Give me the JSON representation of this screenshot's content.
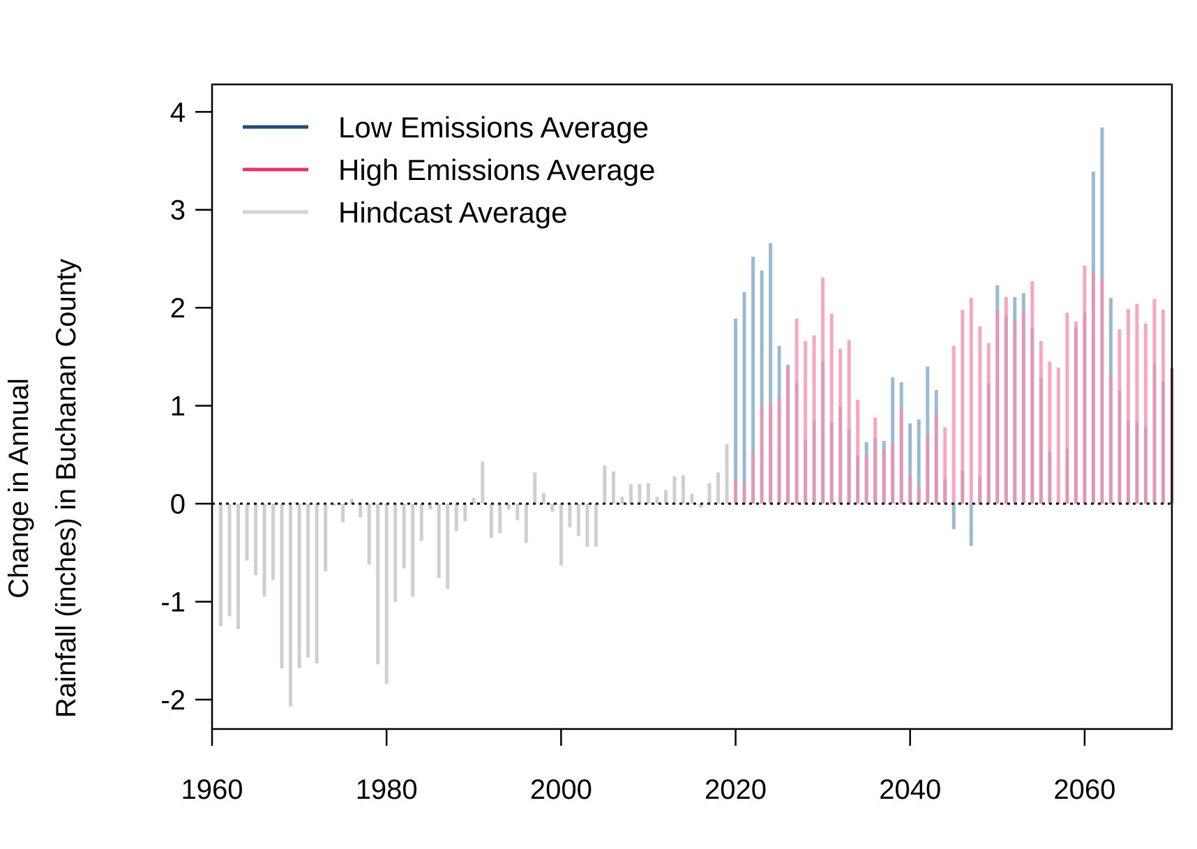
{
  "chart_data": {
    "type": "bar",
    "title": "",
    "xlabel": "",
    "ylabel_lines": [
      "Change in Annual",
      "Rainfall (inches) in Buchanan County"
    ],
    "xlim": [
      1960,
      2070
    ],
    "ylim": [
      -2.3,
      4.0
    ],
    "xticks": [
      1960,
      1980,
      2000,
      2020,
      2040,
      2060
    ],
    "yticks": [
      -2,
      -1,
      0,
      1,
      2,
      3,
      4
    ],
    "grid": false,
    "zero_line": "dotted",
    "legend": {
      "placement": "top-left",
      "entries": [
        {
          "label": "Low Emissions Average",
          "color": "#1f4e79"
        },
        {
          "label": "High Emissions Average",
          "color": "#e8336e"
        },
        {
          "label": "Hindcast Average",
          "color": "#d3d3d3"
        }
      ]
    },
    "series": [
      {
        "name": "Hindcast Average",
        "color": "#cfcfcf",
        "x": [
          1961,
          1962,
          1963,
          1964,
          1965,
          1966,
          1967,
          1968,
          1969,
          1970,
          1971,
          1972,
          1973,
          1974,
          1975,
          1976,
          1977,
          1978,
          1979,
          1980,
          1981,
          1982,
          1983,
          1984,
          1985,
          1986,
          1987,
          1988,
          1989,
          1990,
          1991,
          1992,
          1993,
          1994,
          1995,
          1996,
          1997,
          1998,
          1999,
          2000,
          2001,
          2002,
          2003,
          2004,
          2005,
          2006,
          2007,
          2008,
          2009,
          2010,
          2011,
          2012,
          2013,
          2014,
          2015,
          2016,
          2017,
          2018,
          2019
        ],
        "values": [
          -1.25,
          -1.15,
          -1.28,
          -0.58,
          -0.73,
          -0.95,
          -0.78,
          -1.68,
          -2.07,
          -1.68,
          -1.57,
          -1.63,
          -0.69,
          -0.02,
          -0.19,
          0.05,
          -0.14,
          -0.62,
          -1.64,
          -1.84,
          -1.0,
          -0.66,
          -0.95,
          -0.38,
          -0.06,
          -0.76,
          -0.87,
          -0.28,
          -0.18,
          0.06,
          0.43,
          -0.35,
          -0.3,
          -0.06,
          -0.17,
          -0.4,
          0.32,
          0.11,
          -0.08,
          -0.63,
          -0.24,
          -0.33,
          -0.44,
          -0.44,
          0.39,
          0.33,
          0.07,
          0.2,
          0.2,
          0.21,
          0.07,
          0.14,
          0.28,
          0.29,
          0.1,
          -0.04,
          0.21,
          0.32,
          0.61
        ]
      },
      {
        "name": "Low Emissions Average",
        "color": "#7ea6c7",
        "x": [
          2020,
          2021,
          2022,
          2023,
          2024,
          2025,
          2026,
          2027,
          2028,
          2029,
          2030,
          2031,
          2032,
          2033,
          2034,
          2035,
          2036,
          2037,
          2038,
          2039,
          2040,
          2041,
          2042,
          2043,
          2044,
          2045,
          2046,
          2047,
          2048,
          2049,
          2050,
          2051,
          2052,
          2053,
          2054,
          2055,
          2056,
          2057,
          2058,
          2059,
          2060,
          2061,
          2062,
          2063,
          2064,
          2065,
          2066,
          2067,
          2068,
          2069,
          2070
        ],
        "values": [
          1.89,
          2.16,
          2.52,
          2.38,
          2.66,
          1.61,
          1.42,
          1.23,
          0.65,
          0.85,
          1.45,
          0.83,
          0.99,
          0.76,
          0.49,
          0.63,
          0.67,
          0.64,
          1.29,
          1.24,
          0.82,
          0.86,
          1.4,
          1.16,
          0.25,
          -0.26,
          0.34,
          -0.43,
          0.27,
          1.23,
          2.23,
          1.92,
          2.11,
          2.15,
          1.79,
          1.28,
          0.53,
          0.01,
          0.56,
          1.8,
          1.95,
          3.39,
          3.84,
          2.1,
          1.16,
          0.85,
          0.84,
          0.78,
          1.43,
          1.25,
          1.38
        ]
      },
      {
        "name": "High Emissions Average",
        "color": "#f58fad",
        "x": [
          2020,
          2021,
          2022,
          2023,
          2024,
          2025,
          2026,
          2027,
          2028,
          2029,
          2030,
          2031,
          2032,
          2033,
          2034,
          2035,
          2036,
          2037,
          2038,
          2039,
          2040,
          2041,
          2042,
          2043,
          2044,
          2045,
          2046,
          2047,
          2048,
          2049,
          2050,
          2051,
          2052,
          2053,
          2054,
          2055,
          2056,
          2057,
          2058,
          2059,
          2060,
          2061,
          2062,
          2063,
          2064,
          2065,
          2066,
          2067,
          2068,
          2069,
          2070
        ],
        "values": [
          0.24,
          0.22,
          0.52,
          1.0,
          1.03,
          1.07,
          1.41,
          1.89,
          1.66,
          1.72,
          2.31,
          1.94,
          1.58,
          1.67,
          1.06,
          0.5,
          0.88,
          0.55,
          0.62,
          0.98,
          0.29,
          0.16,
          0.7,
          0.91,
          0.78,
          1.61,
          1.98,
          2.1,
          1.81,
          1.64,
          1.98,
          2.11,
          1.86,
          1.96,
          2.27,
          1.66,
          1.45,
          1.39,
          1.95,
          1.86,
          2.43,
          2.36,
          2.3,
          1.31,
          1.78,
          1.99,
          2.04,
          1.84,
          2.09,
          1.98,
          1.38
        ]
      }
    ]
  }
}
